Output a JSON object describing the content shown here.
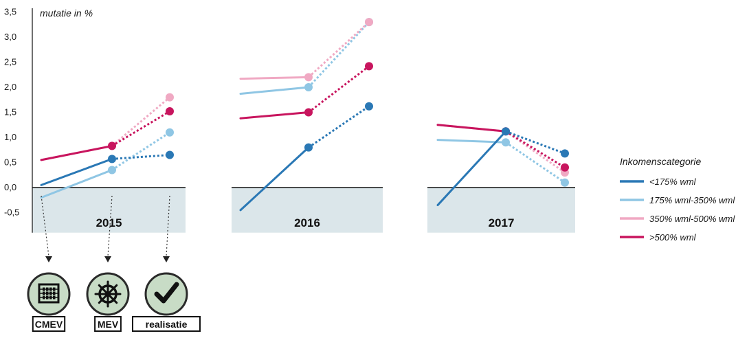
{
  "chart_data": {
    "type": "line",
    "ylabel": "mutatie in %",
    "ylim": [
      -0.9,
      3.5
    ],
    "yticks": [
      {
        "v": 3.5,
        "label": "3,5"
      },
      {
        "v": 3.0,
        "label": "3,0"
      },
      {
        "v": 2.5,
        "label": "2,5"
      },
      {
        "v": 2.0,
        "label": "2,0"
      },
      {
        "v": 1.5,
        "label": "1,5"
      },
      {
        "v": 1.0,
        "label": "1,0"
      },
      {
        "v": 0.5,
        "label": "0,5"
      },
      {
        "v": 0.0,
        "label": "0,0"
      },
      {
        "v": -0.5,
        "label": "-0,5"
      }
    ],
    "x_stages": [
      "CMEV",
      "MEV",
      "realisatie"
    ],
    "panels": [
      {
        "year": "2015",
        "series": [
          {
            "name": "<175% wml",
            "values": [
              0.05,
              0.57,
              0.65
            ]
          },
          {
            "name": "175% wml-350% wml",
            "values": [
              -0.2,
              0.35,
              1.1
            ]
          },
          {
            "name": "350% wml-500% wml",
            "values": [
              0.55,
              0.83,
              1.8
            ]
          },
          {
            "name": ">500% wml",
            "values": [
              0.55,
              0.83,
              1.52
            ]
          }
        ]
      },
      {
        "year": "2016",
        "series": [
          {
            "name": "<175% wml",
            "values": [
              -0.45,
              0.8,
              1.62
            ]
          },
          {
            "name": "175% wml-350% wml",
            "values": [
              1.87,
              2.0,
              3.3
            ]
          },
          {
            "name": "350% wml-500% wml",
            "values": [
              2.17,
              2.2,
              3.3
            ]
          },
          {
            "name": ">500% wml",
            "values": [
              1.38,
              1.5,
              2.42
            ]
          }
        ]
      },
      {
        "year": "2017",
        "series": [
          {
            "name": "<175% wml",
            "values": [
              -0.35,
              1.12,
              0.68
            ]
          },
          {
            "name": "175% wml-350% wml",
            "values": [
              0.95,
              0.9,
              0.1
            ]
          },
          {
            "name": "350% wml-500% wml",
            "values": [
              1.25,
              1.12,
              0.3
            ]
          },
          {
            "name": ">500% wml",
            "values": [
              1.25,
              1.12,
              0.4
            ]
          }
        ]
      }
    ],
    "legend": {
      "title": "Inkomenscategorie",
      "position": "right",
      "entries": [
        "<175% wml",
        "175% wml-350% wml",
        "350% wml-500% wml",
        ">500% wml"
      ]
    },
    "colors": [
      "#2a78b5",
      "#8fc6e4",
      "#f0a9c3",
      "#c8155e"
    ],
    "negative_band_color": "#dbe6ea",
    "style_note": "solid line between first two stages, dotted line to the realisation stage"
  },
  "stages": [
    {
      "label": "CMEV",
      "icon": "abacus-icon"
    },
    {
      "label": "MEV",
      "icon": "ship-wheel-icon"
    },
    {
      "label": "realisatie",
      "icon": "checkmark-icon"
    }
  ]
}
